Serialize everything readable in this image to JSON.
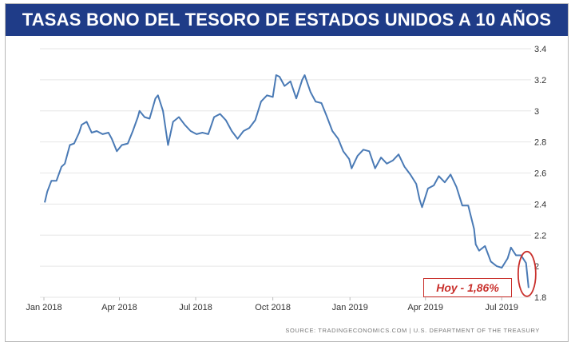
{
  "banner": {
    "title": "TASAS BONO DEL TESORO DE ESTADOS UNIDOS A 10 AÑOS"
  },
  "annotation": {
    "text": "Hoy -  1,86%"
  },
  "source": "SOURCE: TRADINGECONOMICS.COM  |  U.S. DEPARTMENT OF THE TREASURY",
  "colors": {
    "banner": "#1f3c88",
    "line": "#4a7ab5",
    "highlight": "#c9302c"
  },
  "chart_data": {
    "type": "line",
    "title": "TASAS BONO DEL TESORO DE ESTADOS UNIDOS A 10 AÑOS",
    "xlabel": "",
    "ylabel": "",
    "ylim": [
      1.8,
      3.4
    ],
    "xlim": [
      "2018-01-01",
      "2019-08-05"
    ],
    "grid": "horizontal",
    "y_axis_position": "right",
    "x_ticks": [
      "Jan 2018",
      "Apr 2018",
      "Jul 2018",
      "Oct 2018",
      "Jan 2019",
      "Apr 2019",
      "Jul 2019"
    ],
    "y_ticks": [
      "1.8",
      "2",
      "2.2",
      "2.4",
      "2.6",
      "2.8",
      "3",
      "3.2",
      "3.4"
    ],
    "series": [
      {
        "x": [
          "2018-01-02",
          "2018-01-05",
          "2018-01-10",
          "2018-01-16",
          "2018-01-22",
          "2018-01-26",
          "2018-02-01",
          "2018-02-06",
          "2018-02-12",
          "2018-02-15",
          "2018-02-21",
          "2018-02-27",
          "2018-03-05",
          "2018-03-12",
          "2018-03-19",
          "2018-03-23",
          "2018-03-29",
          "2018-04-04",
          "2018-04-11",
          "2018-04-17",
          "2018-04-23",
          "2018-04-25",
          "2018-05-01",
          "2018-05-07",
          "2018-05-14",
          "2018-05-17",
          "2018-05-23",
          "2018-05-29",
          "2018-06-04",
          "2018-06-11",
          "2018-06-18",
          "2018-06-25",
          "2018-07-02",
          "2018-07-09",
          "2018-07-16",
          "2018-07-23",
          "2018-07-30",
          "2018-08-06",
          "2018-08-13",
          "2018-08-20",
          "2018-08-27",
          "2018-09-03",
          "2018-09-10",
          "2018-09-17",
          "2018-09-24",
          "2018-10-01",
          "2018-10-05",
          "2018-10-09",
          "2018-10-15",
          "2018-10-22",
          "2018-10-29",
          "2018-11-05",
          "2018-11-08",
          "2018-11-15",
          "2018-11-21",
          "2018-11-28",
          "2018-12-04",
          "2018-12-11",
          "2018-12-18",
          "2018-12-24",
          "2018-12-31",
          "2019-01-03",
          "2019-01-10",
          "2019-01-17",
          "2019-01-24",
          "2019-01-31",
          "2019-02-07",
          "2019-02-14",
          "2019-02-21",
          "2019-02-28",
          "2019-03-07",
          "2019-03-14",
          "2019-03-21",
          "2019-03-25",
          "2019-03-28",
          "2019-04-04",
          "2019-04-11",
          "2019-04-17",
          "2019-04-24",
          "2019-05-01",
          "2019-05-08",
          "2019-05-15",
          "2019-05-22",
          "2019-05-29",
          "2019-05-31",
          "2019-06-04",
          "2019-06-11",
          "2019-06-18",
          "2019-06-25",
          "2019-07-01",
          "2019-07-08",
          "2019-07-12",
          "2019-07-18",
          "2019-07-24",
          "2019-07-30",
          "2019-08-02"
        ],
        "values": [
          2.41,
          2.48,
          2.55,
          2.55,
          2.64,
          2.66,
          2.78,
          2.79,
          2.86,
          2.91,
          2.93,
          2.86,
          2.87,
          2.85,
          2.86,
          2.82,
          2.74,
          2.78,
          2.79,
          2.87,
          2.96,
          3.0,
          2.96,
          2.95,
          3.08,
          3.1,
          3.0,
          2.78,
          2.93,
          2.96,
          2.91,
          2.87,
          2.85,
          2.86,
          2.85,
          2.96,
          2.98,
          2.94,
          2.87,
          2.82,
          2.87,
          2.89,
          2.94,
          3.06,
          3.1,
          3.09,
          3.23,
          3.22,
          3.16,
          3.19,
          3.08,
          3.2,
          3.23,
          3.12,
          3.06,
          3.05,
          2.97,
          2.87,
          2.82,
          2.74,
          2.69,
          2.63,
          2.71,
          2.75,
          2.74,
          2.63,
          2.7,
          2.66,
          2.68,
          2.72,
          2.64,
          2.59,
          2.53,
          2.43,
          2.38,
          2.5,
          2.52,
          2.58,
          2.54,
          2.59,
          2.51,
          2.39,
          2.39,
          2.24,
          2.14,
          2.1,
          2.13,
          2.03,
          2.0,
          1.99,
          2.05,
          2.12,
          2.07,
          2.07,
          2.02,
          1.86
        ]
      }
    ]
  }
}
